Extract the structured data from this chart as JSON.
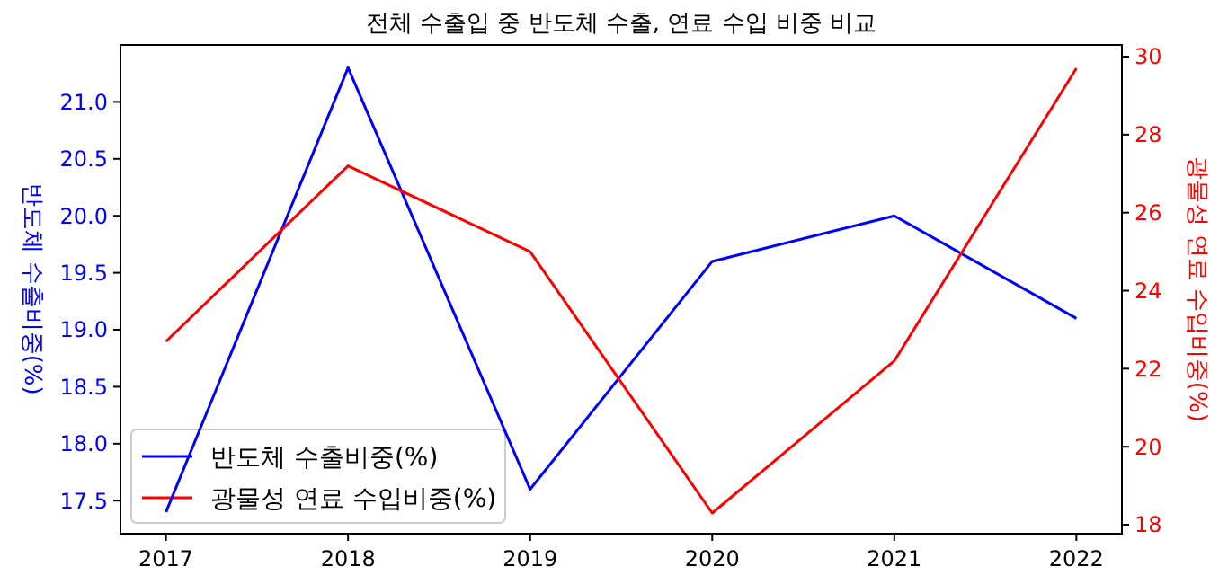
{
  "chart_data": {
    "type": "line",
    "title": "전체 수출입 중 반도체 수출, 연료 수입 비중 비교",
    "ylabel": "반도체 수출비중(%)",
    "y2label": "광물성 연료 수입비중(%)",
    "x": [
      2017,
      2018,
      2019,
      2020,
      2021,
      2022
    ],
    "xlim": [
      2016.75,
      2022.25
    ],
    "xticks": [
      2017,
      2018,
      2019,
      2020,
      2021,
      2022
    ],
    "ylim": [
      17.21,
      21.5
    ],
    "yticks": [
      {
        "value": 17.5,
        "label": "17.5"
      },
      {
        "value": 18,
        "label": "18.0"
      },
      {
        "value": 18.5,
        "label": "18.5"
      },
      {
        "value": 19,
        "label": "19.0"
      },
      {
        "value": 19.5,
        "label": "19.5"
      },
      {
        "value": 20,
        "label": "20.0"
      },
      {
        "value": 20.5,
        "label": "20.5"
      },
      {
        "value": 21,
        "label": "21.0"
      }
    ],
    "y2lim": [
      17.77,
      30.3
    ],
    "y2ticks": [
      18,
      20,
      22,
      24,
      26,
      28,
      30
    ],
    "series": [
      {
        "name": "반도체 수출비중(%)",
        "color": "#0000ff",
        "values": [
          17.4,
          21.3,
          17.6,
          19.6,
          20.0,
          19.1
        ]
      },
      {
        "name": "광물성 연료 수입비중(%)",
        "color": "#ff0000",
        "axis": "y2",
        "values": [
          22.7,
          27.2,
          25.0,
          18.3,
          22.2,
          29.7
        ]
      }
    ],
    "legend": "bottom left",
    "grid": false,
    "marker": "none",
    "line_style": "solid"
  }
}
